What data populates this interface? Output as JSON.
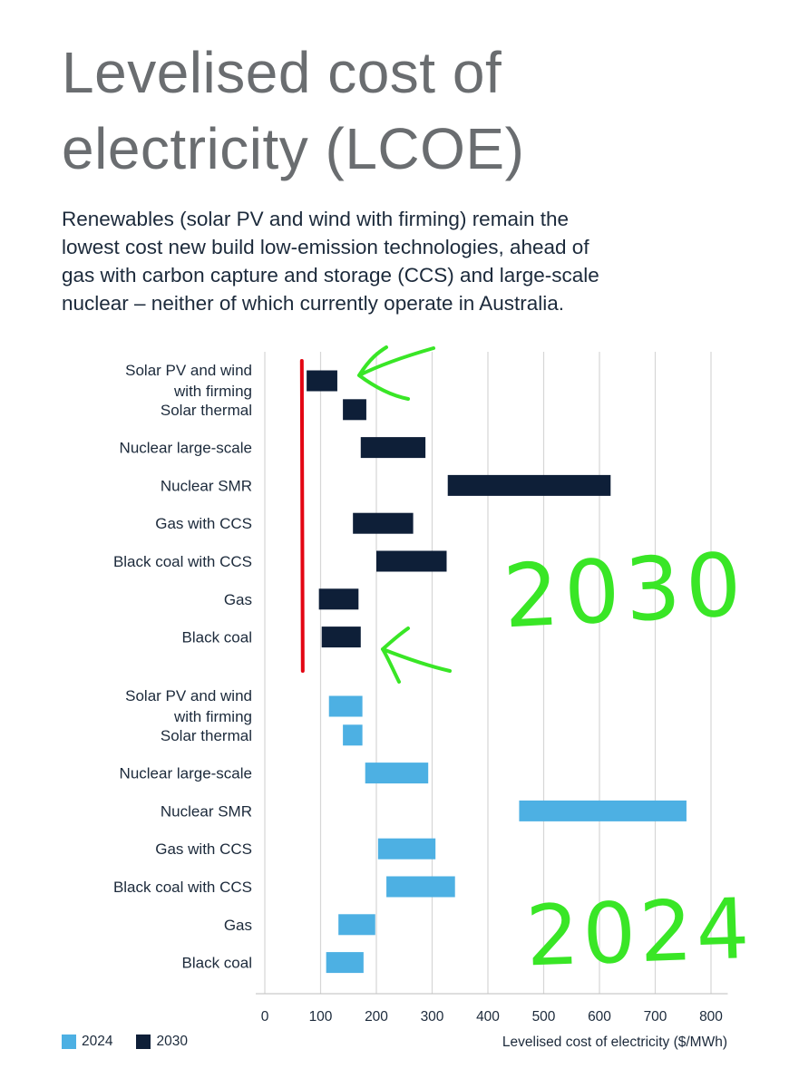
{
  "page": {
    "title_lines": [
      "Levelised cost of",
      "electricity (LCOE)"
    ],
    "subtitle_lines": [
      "Renewables (solar PV and wind with firming) remain the",
      "lowest cost new build low-emission technologies, ahead of",
      "gas with carbon capture and storage (CCS) and large-scale",
      "nuclear – neither of which currently operate in Australia."
    ]
  },
  "colors": {
    "series_2024": "#4db0e3",
    "series_2030": "#0e1f38",
    "grid": "#d6d6d6",
    "annotation_red": "#e30613",
    "annotation_green": "#39e626"
  },
  "chart_data": {
    "type": "floating-bar",
    "orientation": "horizontal",
    "xlabel": "Levelised cost of electricity ($/MWh)",
    "xlim": [
      0,
      850
    ],
    "xticks": [
      0,
      100,
      200,
      300,
      400,
      500,
      600,
      700,
      800
    ],
    "legend": [
      "2024",
      "2030"
    ],
    "groups": [
      {
        "name": "2030",
        "bars": [
          {
            "label": [
              "Solar PV and wind",
              "with firming"
            ],
            "low": 75,
            "high": 130
          },
          {
            "label": [
              "Solar thermal"
            ],
            "low": 140,
            "high": 182
          },
          {
            "label": [
              "Nuclear large-scale"
            ],
            "low": 172,
            "high": 288
          },
          {
            "label": [
              "Nuclear SMR"
            ],
            "low": 328,
            "high": 620
          },
          {
            "label": [
              "Gas with CCS"
            ],
            "low": 158,
            "high": 266
          },
          {
            "label": [
              "Black coal with CCS"
            ],
            "low": 200,
            "high": 326
          },
          {
            "label": [
              "Gas"
            ],
            "low": 97,
            "high": 168
          },
          {
            "label": [
              "Black coal"
            ],
            "low": 102,
            "high": 172
          }
        ]
      },
      {
        "name": "2024",
        "bars": [
          {
            "label": [
              "Solar PV and wind",
              "with firming"
            ],
            "low": 115,
            "high": 175
          },
          {
            "label": [
              "Solar thermal"
            ],
            "low": 140,
            "high": 175
          },
          {
            "label": [
              "Nuclear large-scale"
            ],
            "low": 180,
            "high": 293
          },
          {
            "label": [
              "Nuclear SMR"
            ],
            "low": 456,
            "high": 756
          },
          {
            "label": [
              "Gas with CCS"
            ],
            "low": 203,
            "high": 306
          },
          {
            "label": [
              "Black coal with CCS"
            ],
            "low": 218,
            "high": 341
          },
          {
            "label": [
              "Gas"
            ],
            "low": 132,
            "high": 198
          },
          {
            "label": [
              "Black coal"
            ],
            "low": 110,
            "high": 177
          }
        ]
      }
    ],
    "annotations": {
      "reference_line_value": 68,
      "handwritten_labels": [
        "2030",
        "2024"
      ]
    }
  }
}
